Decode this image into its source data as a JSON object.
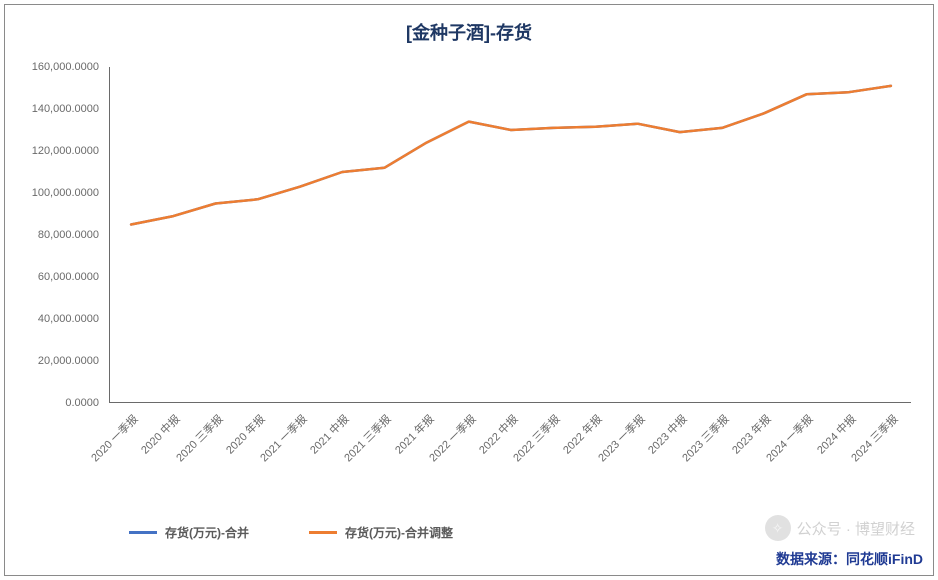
{
  "chart": {
    "type": "line",
    "title": "[金种子酒]-存货",
    "title_color": "#1f3864",
    "title_fontsize": 18,
    "background_color": "#ffffff",
    "border_color": "#8a8a8a",
    "axis_color": "#6a6a6a",
    "label_color": "#6a6a6a",
    "label_fontsize": 11,
    "ylim": [
      0,
      160000
    ],
    "ytick_step": 20000,
    "yticks": [
      "0.0000",
      "20,000.0000",
      "40,000.0000",
      "60,000.0000",
      "80,000.0000",
      "100,000.0000",
      "120,000.0000",
      "140,000.0000",
      "160,000.0000"
    ],
    "categories": [
      "2020 一季报",
      "2020 中报",
      "2020 三季报",
      "2020 年报",
      "2021 一季报",
      "2021 中报",
      "2021 三季报",
      "2021 年报",
      "2022 一季报",
      "2022 中报",
      "2022 三季报",
      "2022 年报",
      "2023 一季报",
      "2023 中报",
      "2023 三季报",
      "2023 年报",
      "2024 一季报",
      "2024 中报",
      "2024 三季报"
    ],
    "series": [
      {
        "name": "存货(万元)-合并",
        "color": "#4472c4",
        "line_width": 2.5,
        "values": [
          85000,
          89000,
          95000,
          97000,
          103000,
          110000,
          112000,
          124000,
          134000,
          130000,
          131000,
          131500,
          133000,
          129000,
          131000,
          138000,
          147000,
          148000,
          151000
        ]
      },
      {
        "name": "存货(万元)-合并调整",
        "color": "#ed7d31",
        "line_width": 2.5,
        "values": [
          85000,
          89000,
          95000,
          97000,
          103000,
          110000,
          112000,
          124000,
          134000,
          130000,
          131000,
          131500,
          133000,
          129000,
          131000,
          138000,
          147000,
          148000,
          151000
        ]
      }
    ],
    "legend": {
      "items": [
        "存货(万元)-合并",
        "存货(万元)-合并调整"
      ],
      "label_color": "#5a5a5a",
      "fontsize": 12
    }
  },
  "footer": {
    "text": "数据来源：同花顺iFinD",
    "color": "#1f3a93",
    "fontsize": 14
  },
  "watermark": {
    "text": "公众号 · 博望财经",
    "icon_glyph": "✧",
    "color": "#c9c9c9"
  }
}
